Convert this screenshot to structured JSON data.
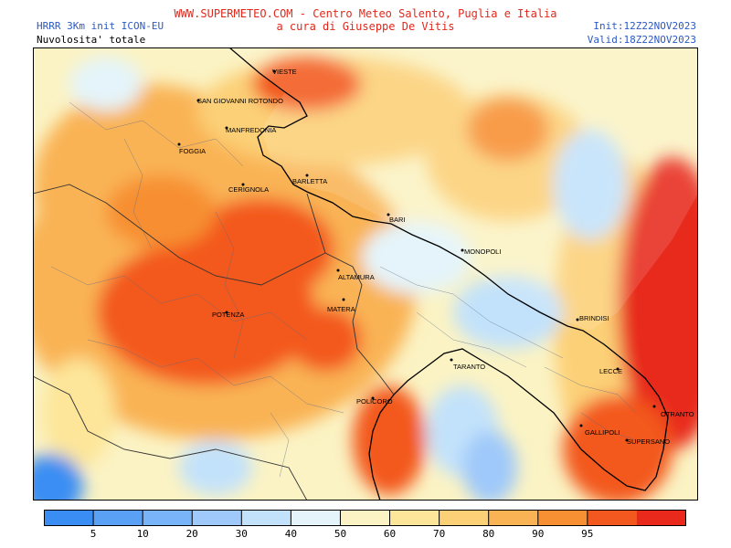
{
  "header": {
    "title_line1": "WWW.SUPERMETEO.COM - Centro Meteo Salento, Puglia e Italia",
    "title_line2": "a cura di Giuseppe De Vitis",
    "model": "HRRR 3Km init ICON-EU",
    "parameter": "Nuvolosita' totale",
    "init": "Init:12Z22NOV2023",
    "valid": "Valid:18Z22NOV2023"
  },
  "colors": {
    "title": "#e0281c",
    "info": "#2b59c3",
    "coast": "#000000",
    "borders": "#5a6a86"
  },
  "legend": {
    "ticks": [
      "5",
      "10",
      "20",
      "30",
      "40",
      "50",
      "60",
      "70",
      "80",
      "90",
      "95"
    ],
    "colors": [
      "#3a8ef3",
      "#5aa1f6",
      "#7ab4f8",
      "#9fc9fa",
      "#c2e2fb",
      "#e4f4fa",
      "#fbf3c4",
      "#fde69a",
      "#fcd077",
      "#f9b354",
      "#f78f33",
      "#f3591f",
      "#e8291c"
    ]
  },
  "cities": [
    {
      "name": "VIESTE"
    },
    {
      "name": "SAN GIOVANNI ROTONDO"
    },
    {
      "name": "MANFREDONIA"
    },
    {
      "name": "FOGGIA"
    },
    {
      "name": "CERIGNOLA"
    },
    {
      "name": "BARLETTA"
    },
    {
      "name": "BARI"
    },
    {
      "name": "MONOPOLI"
    },
    {
      "name": "ALTAMURA"
    },
    {
      "name": "MATERA"
    },
    {
      "name": "POTENZA"
    },
    {
      "name": "BRINDISI"
    },
    {
      "name": "TARANTO"
    },
    {
      "name": "LECCE"
    },
    {
      "name": "POLICORO"
    },
    {
      "name": "OTRANTO"
    },
    {
      "name": "GALLIPOLI"
    },
    {
      "name": "SUPERSANO"
    }
  ]
}
